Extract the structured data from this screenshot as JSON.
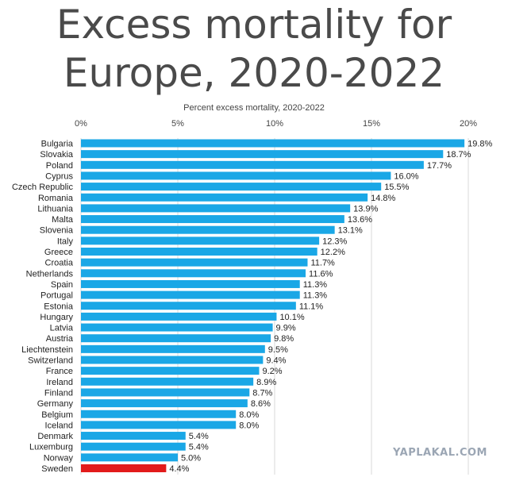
{
  "title_line1": "Excess mortality for",
  "title_line2": "Europe, 2020-2022",
  "watermark": "YAPLAKAL.COM",
  "chart_data": {
    "type": "bar",
    "orientation": "horizontal",
    "title": "Excess mortality for Europe, 2020-2022",
    "xlabel": "Percent excess mortality, 2020-2022",
    "ylabel": "",
    "xlim": [
      0,
      20
    ],
    "x_ticks": [
      "0%",
      "5%",
      "10%",
      "15%",
      "20%"
    ],
    "grid": true,
    "colors": {
      "default": "#1aa7e6",
      "highlight": "#e21b1b"
    },
    "highlight_category": "Sweden",
    "categories": [
      "Bulgaria",
      "Slovakia",
      "Poland",
      "Cyprus",
      "Czech Republic",
      "Romania",
      "Lithuania",
      "Malta",
      "Slovenia",
      "Italy",
      "Greece",
      "Croatia",
      "Netherlands",
      "Spain",
      "Portugal",
      "Estonia",
      "Hungary",
      "Latvia",
      "Austria",
      "Liechtenstein",
      "Switzerland",
      "France",
      "Ireland",
      "Finland",
      "Germany",
      "Belgium",
      "Iceland",
      "Denmark",
      "Luxemburg",
      "Norway",
      "Sweden"
    ],
    "values": [
      19.8,
      18.7,
      17.7,
      16.0,
      15.5,
      14.8,
      13.9,
      13.6,
      13.1,
      12.3,
      12.2,
      11.7,
      11.6,
      11.3,
      11.3,
      11.1,
      10.1,
      9.9,
      9.8,
      9.5,
      9.4,
      9.2,
      8.9,
      8.7,
      8.6,
      8.0,
      8.0,
      5.4,
      5.4,
      5.0,
      4.4
    ],
    "value_labels": [
      "19.8%",
      "18.7%",
      "17.7%",
      "16.0%",
      "15.5%",
      "14.8%",
      "13.9%",
      "13.6%",
      "13.1%",
      "12.3%",
      "12.2%",
      "11.7%",
      "11.6%",
      "11.3%",
      "11.3%",
      "11.1%",
      "10.1%",
      "9.9%",
      "9.8%",
      "9.5%",
      "9.4%",
      "9.2%",
      "8.9%",
      "8.7%",
      "8.6%",
      "8.0%",
      "8.0%",
      "5.4%",
      "5.4%",
      "5.0%",
      "4.4%"
    ]
  }
}
